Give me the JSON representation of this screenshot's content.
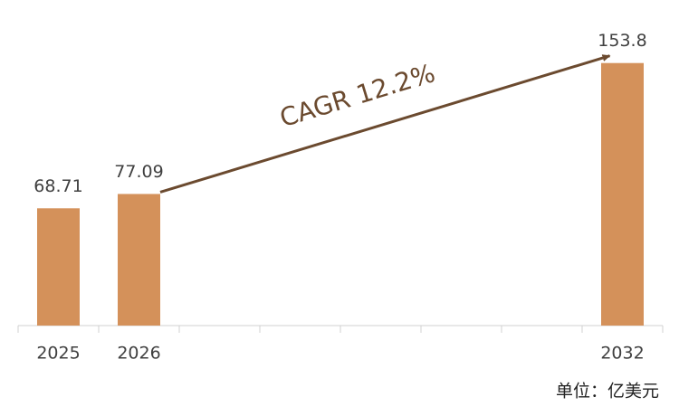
{
  "chart_data": {
    "type": "bar",
    "categories": [
      "2025",
      "2026",
      null,
      null,
      null,
      null,
      null,
      "2032"
    ],
    "values": [
      68.71,
      77.09,
      null,
      null,
      null,
      null,
      null,
      153.8
    ],
    "color": "#d4915a",
    "ylim": [
      0,
      160
    ],
    "annotation": "CAGR 12.2%",
    "unit": "单位：亿美元"
  }
}
